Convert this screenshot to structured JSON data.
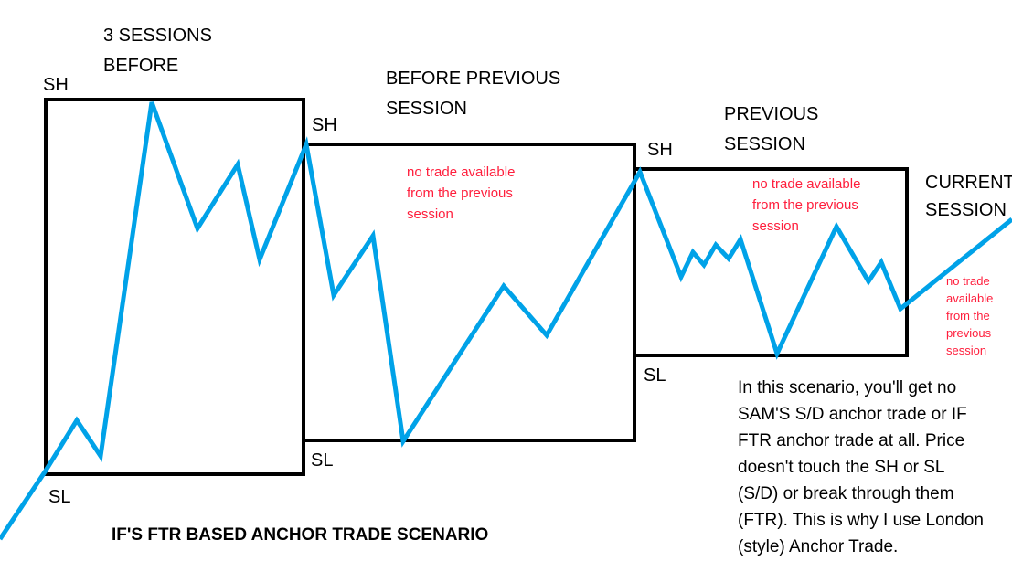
{
  "colors": {
    "price_line": "#00a2e8",
    "box": "#000000",
    "note_red": "#ff1e3c"
  },
  "title": "IF'S FTR BASED ANCHOR TRADE SCENARIO",
  "sessions": [
    {
      "name_lines": [
        "3 SESSIONS",
        "BEFORE"
      ],
      "high_label": "SH",
      "low_label": "SL"
    },
    {
      "name_lines": [
        "BEFORE PREVIOUS",
        "SESSION"
      ],
      "high_label": "SH",
      "low_label": "SL",
      "note_lines": [
        "no trade available",
        "from the previous",
        "session"
      ]
    },
    {
      "name_lines": [
        "PREVIOUS",
        "SESSION"
      ],
      "high_label": "SH",
      "low_label": "SL",
      "note_lines": [
        "no trade available",
        "from the previous",
        "session"
      ]
    },
    {
      "name_lines": [
        "CURRENT",
        "SESSION"
      ],
      "note_lines": [
        "no trade",
        "available",
        "from the",
        "previous",
        "session"
      ]
    }
  ],
  "explanation_lines": [
    "In this scenario, you'll get no",
    "SAM'S S/D anchor trade or IF",
    "FTR anchor trade at all. Price",
    "doesn't touch the SH or SL",
    "(S/D) or break through them",
    "(FTR). This is why I use London",
    "(style) Anchor Trade."
  ]
}
